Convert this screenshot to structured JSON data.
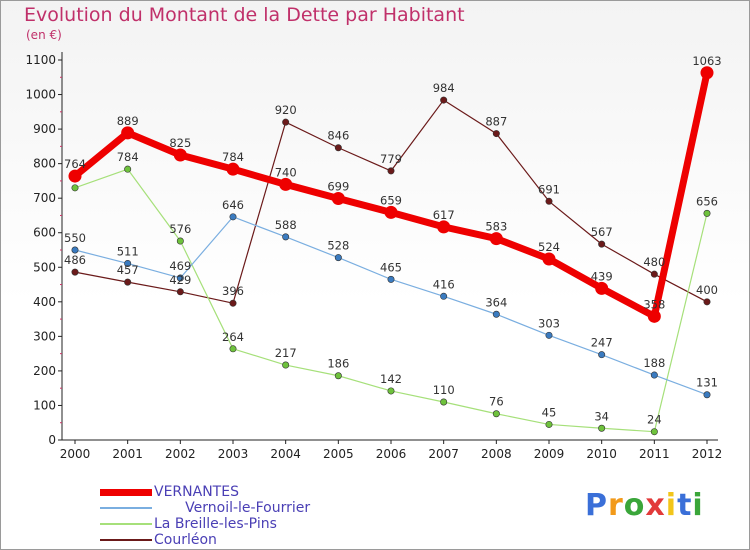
{
  "title": "Evolution du Montant de la Dette par Habitant",
  "unit_label": "(en €)",
  "logo_text": "Proxiti",
  "logo_colors": [
    "#3a6fd8",
    "#f29a1a",
    "#3aa63a",
    "#e23a3a",
    "#f2c51a",
    "#3a6fd8",
    "#3aa63a"
  ],
  "chart_data": {
    "type": "line",
    "title": "Evolution du Montant de la Dette par Habitant",
    "ylabel": "(en €)",
    "xlabel": "",
    "x": [
      "2000",
      "2001",
      "2002",
      "2003",
      "2004",
      "2005",
      "2006",
      "2007",
      "2008",
      "2009",
      "2010",
      "2011",
      "2012"
    ],
    "ylim": [
      0,
      1100
    ],
    "yticks": [
      0,
      100,
      200,
      300,
      400,
      500,
      600,
      700,
      800,
      900,
      1000,
      1100
    ],
    "grid": false,
    "legend_position": "bottom-left",
    "series": [
      {
        "name": "Courléon",
        "color": "#6b1a1a",
        "marker": "#6b1a1a",
        "width": 1.2,
        "values": [
          486,
          457,
          429,
          396,
          920,
          846,
          779,
          984,
          887,
          691,
          567,
          480,
          400
        ],
        "labels": [
          "486",
          "457",
          "429",
          "396",
          "920",
          "846",
          "779",
          "984",
          "887",
          "691",
          "567",
          "480",
          "400"
        ]
      },
      {
        "name": "La Breille-les-Pins",
        "color": "#a6e07a",
        "marker": "#6ec23c",
        "width": 1.2,
        "values": [
          730,
          784,
          576,
          264,
          217,
          186,
          142,
          110,
          76,
          45,
          34,
          24,
          656
        ],
        "labels": [
          "",
          "784",
          "576",
          "264",
          "217",
          "186",
          "142",
          "110",
          "76",
          "45",
          "34",
          "24",
          "656"
        ]
      },
      {
        "name": "       Vernoil-le-Fourrier",
        "color": "#7aaee0",
        "marker": "#3a7bc0",
        "width": 1.2,
        "values": [
          550,
          511,
          469,
          646,
          588,
          528,
          465,
          416,
          364,
          303,
          247,
          188,
          131
        ],
        "labels": [
          "550",
          "511",
          "469",
          "646",
          "588",
          "528",
          "465",
          "416",
          "364",
          "303",
          "247",
          "188",
          "131"
        ]
      },
      {
        "name": "VERNANTES",
        "color": "#ee0000",
        "marker": "#ee0000",
        "width": 7,
        "values": [
          764,
          889,
          825,
          784,
          740,
          699,
          659,
          617,
          583,
          524,
          439,
          358,
          1063
        ],
        "labels": [
          "764",
          "889",
          "825",
          "784",
          "740",
          "699",
          "659",
          "617",
          "583",
          "524",
          "439",
          "358",
          "1063"
        ]
      }
    ]
  },
  "legend": [
    {
      "label": "VERNANTES",
      "color": "#ee0000",
      "width": 7
    },
    {
      "label": "       Vernoil-le-Fourrier",
      "color": "#7aaee0",
      "width": 2
    },
    {
      "label": "La Breille-les-Pins",
      "color": "#a6e07a",
      "width": 2
    },
    {
      "label": "Courléon",
      "color": "#6b1a1a",
      "width": 2
    }
  ]
}
